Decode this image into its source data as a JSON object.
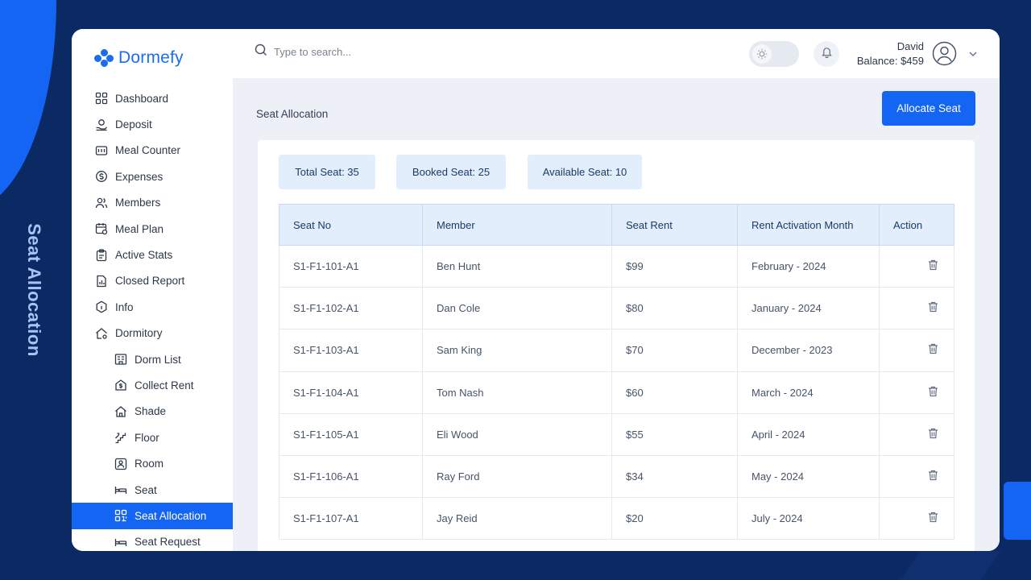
{
  "page_side_title": "Seat Allocation",
  "brand": {
    "name": "Dormefy",
    "color": "#1a6cf0"
  },
  "search": {
    "placeholder": "Type to search..."
  },
  "user": {
    "name": "David",
    "balance": "Balance: $459"
  },
  "sidebar": {
    "items": [
      {
        "label": "Dashboard",
        "icon": "grid-icon"
      },
      {
        "label": "Deposit",
        "icon": "deposit-icon"
      },
      {
        "label": "Meal Counter",
        "icon": "counter-icon"
      },
      {
        "label": "Expenses",
        "icon": "coin-icon"
      },
      {
        "label": "Members",
        "icon": "users-icon"
      },
      {
        "label": "Meal Plan",
        "icon": "calendar-icon"
      },
      {
        "label": "Active Stats",
        "icon": "clipboard-icon"
      },
      {
        "label": "Closed Report",
        "icon": "report-icon"
      },
      {
        "label": "Info",
        "icon": "info-icon"
      },
      {
        "label": "Dormitory",
        "icon": "home-gear-icon"
      }
    ],
    "sub_items": [
      {
        "label": "Dorm List",
        "icon": "building-icon"
      },
      {
        "label": "Collect Rent",
        "icon": "house-dollar-icon"
      },
      {
        "label": "Shade",
        "icon": "house-icon"
      },
      {
        "label": "Floor",
        "icon": "stairs-icon"
      },
      {
        "label": "Room",
        "icon": "room-icon"
      },
      {
        "label": "Seat",
        "icon": "bed-icon"
      },
      {
        "label": "Seat Allocation",
        "icon": "qr-grid-icon",
        "active": true
      },
      {
        "label": "Seat Request",
        "icon": "bed-icon"
      }
    ]
  },
  "main": {
    "title": "Seat Allocation",
    "allocate_button": "Allocate Seat",
    "stats": {
      "total": "Total Seat: 35",
      "booked": "Booked Seat: 25",
      "available": "Available Seat: 10"
    },
    "table": {
      "columns": [
        "Seat No",
        "Member",
        "Seat Rent",
        "Rent Activation Month",
        "Action"
      ],
      "rows": [
        {
          "seat": "S1-F1-101-A1",
          "member": "Ben Hunt",
          "rent": "$99",
          "month": "February - 2024"
        },
        {
          "seat": "S1-F1-102-A1",
          "member": "Dan Cole",
          "rent": "$80",
          "month": "January - 2024"
        },
        {
          "seat": "S1-F1-103-A1",
          "member": "Sam King",
          "rent": "$70",
          "month": "December - 2023"
        },
        {
          "seat": "S1-F1-104-A1",
          "member": "Tom Nash",
          "rent": "$60",
          "month": "March - 2024"
        },
        {
          "seat": "S1-F1-105-A1",
          "member": "Eli Wood",
          "rent": "$55",
          "month": "April - 2024"
        },
        {
          "seat": "S1-F1-106-A1",
          "member": "Ray Ford",
          "rent": "$34",
          "month": "May - 2024"
        },
        {
          "seat": "S1-F1-107-A1",
          "member": "Jay Reid",
          "rent": "$20",
          "month": "July - 2024"
        }
      ]
    }
  },
  "colors": {
    "accent": "#1565f5",
    "background": "#0b2a63",
    "header_fill": "#e3eefd"
  }
}
